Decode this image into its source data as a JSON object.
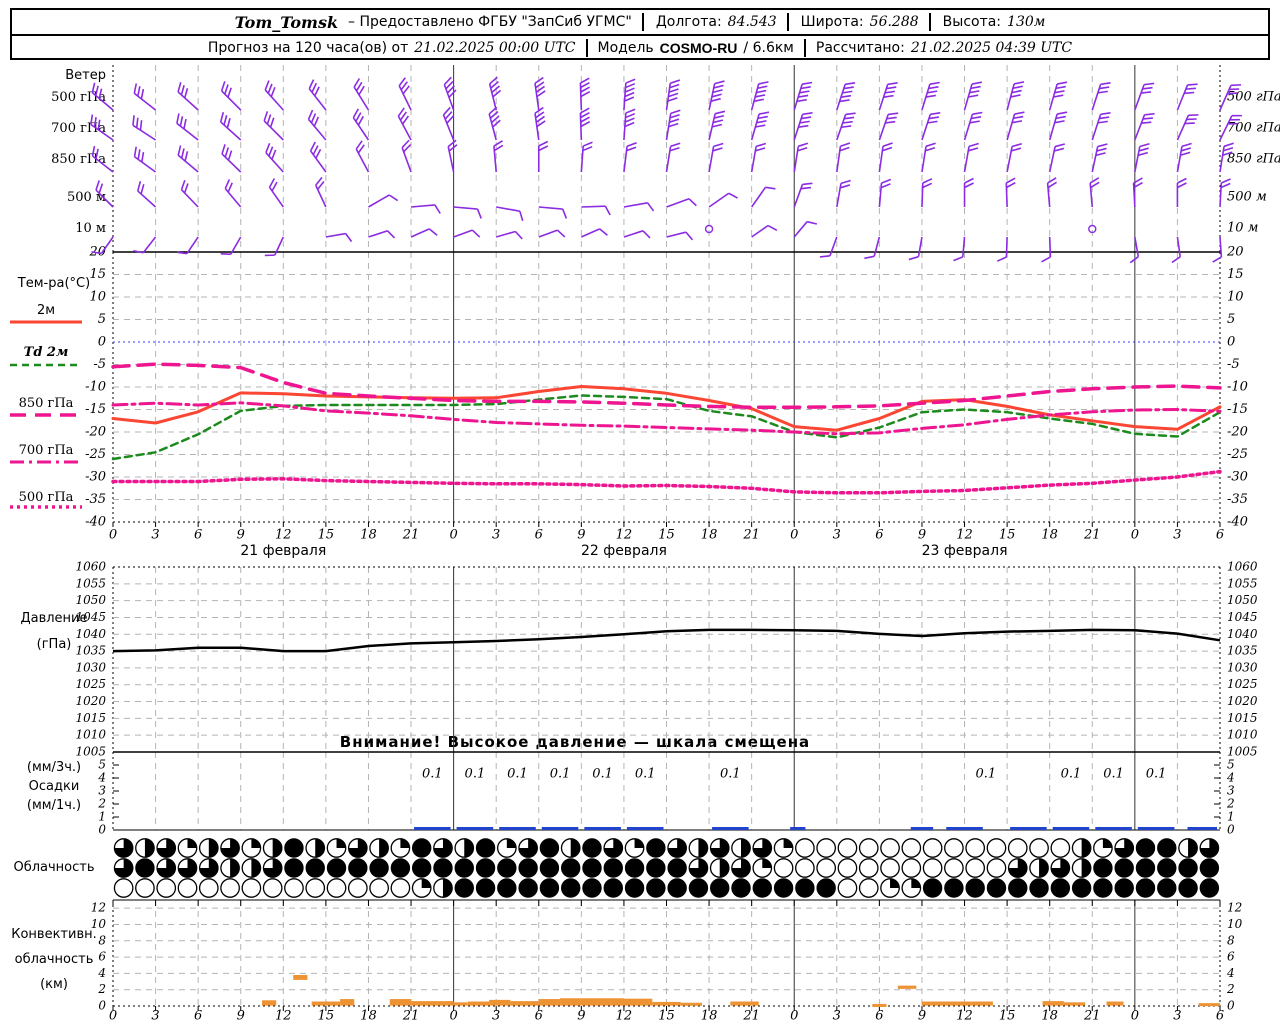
{
  "header": {
    "row1": {
      "station": "Tom_Tomsk",
      "dash": "–",
      "provider": "Предоставлено ФГБУ \"ЗапСиб УГМС\"",
      "lon_label": "Долгота:",
      "lon_value": "84.543",
      "lat_label": "Широта:",
      "lat_value": "56.288",
      "alt_label": "Высота:",
      "alt_value": "130м"
    },
    "row2": {
      "forecast_label": "Прогноз на 120 часа(ов) от",
      "init_value": "21.02.2025 00:00 UTC",
      "model_label": "Модель",
      "model_value": "COSMO-RU",
      "model_suffix": "/ 6.6км",
      "calc_label": "Рассчитано:",
      "calc_value": "21.02.2025 04:39 UTC"
    }
  },
  "axis": {
    "span_hours": 78,
    "step_hours": 3,
    "hour_labels": [
      "0",
      "3",
      "6",
      "9",
      "12",
      "15",
      "18",
      "21",
      "0",
      "3",
      "6",
      "9",
      "12",
      "15",
      "18",
      "21",
      "0",
      "3",
      "6",
      "9",
      "12",
      "15",
      "18",
      "21",
      "0",
      "3",
      "6"
    ],
    "date_labels": [
      {
        "text": "21 февраля",
        "hour": 12
      },
      {
        "text": "22 февраля",
        "hour": 36
      },
      {
        "text": "23 февраля",
        "hour": 60
      }
    ]
  },
  "chart_data": [
    {
      "id": "wind",
      "type": "wind-barbs",
      "title": "Ветер",
      "barb_color": "#8b2be2",
      "rows": [
        {
          "level": "500 гПа",
          "angles": [
            -50,
            -52,
            -48,
            -45,
            -42,
            -38,
            -32,
            -26,
            -20,
            -14,
            -8,
            -2,
            4,
            8,
            12,
            15,
            17,
            18,
            18,
            17,
            16,
            15,
            16,
            18,
            20,
            22,
            24
          ],
          "feathers": [
            3,
            3,
            3,
            3,
            3,
            3,
            3,
            3,
            4,
            4,
            4,
            4,
            5,
            5,
            5,
            5,
            5,
            5,
            4,
            4,
            4,
            4,
            4,
            3,
            3,
            3,
            3
          ]
        },
        {
          "level": "700 гПа",
          "angles": [
            -55,
            -57,
            -52,
            -48,
            -45,
            -40,
            -34,
            -28,
            -22,
            -15,
            -8,
            -2,
            4,
            9,
            13,
            16,
            18,
            19,
            19,
            18,
            17,
            16,
            16,
            18,
            21,
            24,
            26
          ],
          "feathers": [
            3,
            3,
            3,
            3,
            3,
            3,
            3,
            3,
            3,
            4,
            4,
            4,
            4,
            4,
            4,
            4,
            4,
            4,
            3,
            3,
            3,
            3,
            3,
            3,
            3,
            3,
            3
          ]
        },
        {
          "level": "850 гПа",
          "angles": [
            -52,
            -54,
            -50,
            -46,
            -42,
            -36,
            -28,
            -20,
            -12,
            -5,
            0,
            4,
            7,
            9,
            10,
            10,
            9,
            8,
            8,
            9,
            10,
            11,
            12,
            12,
            11,
            10,
            9
          ],
          "feathers": [
            2,
            3,
            3,
            3,
            3,
            3,
            2,
            2,
            2,
            2,
            2,
            2,
            2,
            2,
            2,
            2,
            2,
            2,
            2,
            2,
            2,
            2,
            2,
            3,
            3,
            3,
            3
          ]
        },
        {
          "level": "500 м",
          "angles": [
            -45,
            -48,
            -44,
            -40,
            -35,
            -25,
            60,
            85,
            95,
            100,
            95,
            88,
            80,
            70,
            55,
            35,
            20,
            10,
            5,
            2,
            0,
            -2,
            -5,
            -5,
            -3,
            0,
            3
          ],
          "feathers": [
            2,
            2,
            2,
            2,
            2,
            2,
            1,
            1,
            1,
            1,
            1,
            1,
            1,
            1,
            1,
            1,
            2,
            2,
            2,
            2,
            2,
            2,
            2,
            2,
            2,
            2,
            2
          ]
        },
        {
          "level": "10 м",
          "angles": [
            215,
            218,
            214,
            210,
            205,
            80,
            72,
            66,
            70,
            74,
            70,
            66,
            72,
            76,
            65,
            55,
            40,
            200,
            195,
            190,
            185,
            182,
            178,
            174,
            170,
            172,
            176
          ],
          "feathers": [
            1,
            1,
            1,
            1,
            1,
            1,
            1,
            1,
            1,
            1,
            1,
            1,
            1,
            1,
            1,
            1,
            1,
            1,
            1,
            1,
            1,
            1,
            1,
            1,
            1,
            1,
            1
          ]
        }
      ],
      "calm_points": [
        {
          "row": 4,
          "index": 14
        },
        {
          "row": 4,
          "index": 23
        }
      ]
    },
    {
      "id": "temperature",
      "type": "line",
      "ylabel": "Тем-ра(°C)",
      "ylim": [
        -40,
        20
      ],
      "yticks": [
        20,
        15,
        10,
        5,
        0,
        -5,
        -10,
        -15,
        -20,
        -25,
        -30,
        -35,
        -40
      ],
      "zero_line_color": "#3b3bff",
      "series": [
        {
          "name": "2м",
          "color": "#fa4632",
          "dash": "solid",
          "width": 3,
          "values": [
            -17,
            -18,
            -15.5,
            -11.3,
            -11.5,
            -12,
            -12.2,
            -12.4,
            -12.5,
            -12.4,
            -11,
            -9.9,
            -10.4,
            -11.4,
            -13,
            -14.8,
            -18.8,
            -19.6,
            -17,
            -13.2,
            -12.8,
            -14.3,
            -16.2,
            -17.5,
            -18.8,
            -19.4,
            -14.4
          ]
        },
        {
          "name": "Td 2м",
          "color": "#1d8a1d",
          "dash": "dashed",
          "width": 2.5,
          "values": [
            -26,
            -24.5,
            -20.5,
            -15.3,
            -14.2,
            -14,
            -14,
            -14,
            -14,
            -13.8,
            -12.8,
            -11.9,
            -12.2,
            -12.7,
            -15.3,
            -16.5,
            -20,
            -21.2,
            -19,
            -15.6,
            -15,
            -15.6,
            -17,
            -18.2,
            -20.4,
            -21,
            -15.6
          ]
        },
        {
          "name": "850 гПа",
          "color": "#ed1690",
          "dash": "longdash",
          "width": 3.5,
          "values": [
            -5.5,
            -4.9,
            -5.2,
            -5.7,
            -9,
            -11.4,
            -12,
            -12.5,
            -13,
            -13.2,
            -13.2,
            -13.3,
            -13.6,
            -14,
            -14.3,
            -14.5,
            -14.5,
            -14.4,
            -14.2,
            -13.6,
            -13,
            -12,
            -11,
            -10.4,
            -10,
            -9.8,
            -10.2
          ]
        },
        {
          "name": "700 гПа",
          "color": "#ed1690",
          "dash": "dashdot",
          "width": 3,
          "values": [
            -14,
            -13.6,
            -14,
            -13.5,
            -14.2,
            -15.3,
            -15.8,
            -16.4,
            -17.2,
            -17.9,
            -18.2,
            -18.5,
            -18.7,
            -19,
            -19.3,
            -19.6,
            -20,
            -20.4,
            -20.2,
            -19.2,
            -18.4,
            -17.2,
            -16.2,
            -15.5,
            -15.1,
            -15,
            -15.4
          ]
        },
        {
          "name": "500 гПа",
          "color": "#ed1690",
          "dash": "dotted",
          "width": 3.5,
          "values": [
            -31,
            -31,
            -31,
            -30.5,
            -30.4,
            -30.8,
            -31,
            -31.2,
            -31.4,
            -31.5,
            -31.5,
            -31.7,
            -32,
            -31.9,
            -32.1,
            -32.5,
            -33.3,
            -33.5,
            -33.5,
            -33.2,
            -33,
            -32.4,
            -31.8,
            -31.4,
            -30.7,
            -30,
            -28.8
          ]
        }
      ]
    },
    {
      "id": "pressure",
      "type": "line",
      "ylabel_lines": [
        "Давление",
        "(гПа)"
      ],
      "ylim": [
        1005,
        1060
      ],
      "yticks": [
        1060,
        1055,
        1050,
        1045,
        1040,
        1035,
        1030,
        1025,
        1020,
        1015,
        1010,
        1005
      ],
      "warning": "Внимание! Высокое давление — шкала смещена",
      "series": [
        {
          "name": "Давление",
          "color": "#000000",
          "dash": "solid",
          "width": 2.5,
          "values": [
            1035,
            1035.2,
            1036,
            1036,
            1035,
            1035,
            1036.5,
            1037.3,
            1037.6,
            1038,
            1038.5,
            1039.2,
            1040,
            1040.9,
            1041.3,
            1041.3,
            1041.2,
            1041,
            1040.1,
            1039.5,
            1040.3,
            1040.8,
            1041,
            1041.3,
            1041.2,
            1040.2,
            1038.2
          ]
        }
      ]
    },
    {
      "id": "precip",
      "type": "bar",
      "ylabel_lines": [
        "(мм/3ч.)",
        "Осадки",
        "(мм/1ч.)"
      ],
      "ylim": [
        0,
        5
      ],
      "yticks": [
        5,
        4,
        3,
        2,
        1,
        0
      ],
      "bar_color": "#2244cc",
      "value_labels": [
        {
          "hour": 22.5,
          "text": "0.1"
        },
        {
          "hour": 25.5,
          "text": "0.1"
        },
        {
          "hour": 28.5,
          "text": "0.1"
        },
        {
          "hour": 31.5,
          "text": "0.1"
        },
        {
          "hour": 34.5,
          "text": "0.1"
        },
        {
          "hour": 37.5,
          "text": "0.1"
        },
        {
          "hour": 43.5,
          "text": "0.1"
        },
        {
          "hour": 61.5,
          "text": "0.1"
        },
        {
          "hour": 67.5,
          "text": "0.1"
        },
        {
          "hour": 70.5,
          "text": "0.1"
        },
        {
          "hour": 73.5,
          "text": "0.1"
        }
      ],
      "bars": [
        {
          "h1": 21,
          "h2": 24,
          "amount": 0.1
        },
        {
          "h1": 24,
          "h2": 27,
          "amount": 0.1
        },
        {
          "h1": 27,
          "h2": 30,
          "amount": 0.1
        },
        {
          "h1": 30,
          "h2": 33,
          "amount": 0.1
        },
        {
          "h1": 33,
          "h2": 36,
          "amount": 0.1
        },
        {
          "h1": 36,
          "h2": 39,
          "amount": 0.1
        },
        {
          "h1": 42,
          "h2": 45,
          "amount": 0.1
        },
        {
          "h1": 47.5,
          "h2": 49,
          "amount": 0.1
        },
        {
          "h1": 56,
          "h2": 58,
          "amount": 0.1
        },
        {
          "h1": 58.5,
          "h2": 61.5,
          "amount": 0.1
        },
        {
          "h1": 63,
          "h2": 66,
          "amount": 0.1
        },
        {
          "h1": 66,
          "h2": 69,
          "amount": 0.1
        },
        {
          "h1": 69,
          "h2": 72,
          "amount": 0.1
        },
        {
          "h1": 72,
          "h2": 75,
          "amount": 0.1
        },
        {
          "h1": 75.5,
          "h2": 78,
          "amount": 0.1
        }
      ]
    },
    {
      "id": "cloud",
      "type": "cloud-cover",
      "ylabel": "Облачность",
      "rows": [
        [
          0.75,
          0.5,
          0.75,
          0.25,
          0.5,
          0.75,
          0.25,
          0.5,
          1,
          0.5,
          0.25,
          0.75,
          0.5,
          0.25,
          1,
          0.75,
          0.5,
          1,
          0.25,
          0.75,
          1,
          0.5,
          1,
          0.75,
          0.25,
          1,
          0.75,
          0.5,
          0.75,
          0.5,
          0.75,
          0.25,
          0,
          0,
          0,
          0,
          0,
          0,
          0,
          0,
          0,
          0,
          0,
          0,
          0,
          0.5,
          0.25,
          0.75,
          1,
          1,
          0.5,
          0.75
        ],
        [
          0.75,
          1,
          0.75,
          0.75,
          0.75,
          0.5,
          0.5,
          0.75,
          1,
          1,
          1,
          1,
          1,
          1,
          1,
          1,
          1,
          1,
          1,
          1,
          1,
          1,
          1,
          1,
          1,
          1,
          1,
          0.75,
          0.5,
          0.75,
          0.25,
          0,
          0,
          0,
          0,
          0,
          0,
          0,
          0,
          0,
          0,
          0,
          0.75,
          0.5,
          0.75,
          0.5,
          1,
          1,
          1,
          1,
          1,
          1
        ],
        [
          0,
          0,
          0,
          0,
          0,
          0,
          0,
          0,
          0,
          0,
          0,
          0,
          0,
          0,
          0.25,
          0.5,
          1,
          1,
          1,
          1,
          1,
          1,
          1,
          1,
          1,
          1,
          1,
          1,
          1,
          1,
          1,
          1,
          1,
          1,
          0,
          0,
          0.25,
          0.25,
          1,
          1,
          1,
          1,
          1,
          1,
          1,
          1,
          1,
          1,
          1,
          1,
          1,
          1
        ]
      ]
    },
    {
      "id": "convective",
      "type": "bar",
      "ylabel_lines": [
        "Конвективн.",
        "облачность",
        "(км)"
      ],
      "ylim": [
        0,
        13
      ],
      "yticks": [
        12,
        10,
        8,
        6,
        4,
        2,
        0
      ],
      "color": "#ee9333",
      "segments": [
        {
          "h1": 10.5,
          "h2": 11.5,
          "b": 0.05,
          "t": 0.7
        },
        {
          "h1": 12.7,
          "h2": 13.7,
          "b": 3.2,
          "t": 3.8
        },
        {
          "h1": 14,
          "h2": 16,
          "b": 0.05,
          "t": 0.55
        },
        {
          "h1": 16,
          "h2": 17,
          "b": 0.05,
          "t": 0.85
        },
        {
          "h1": 19.5,
          "h2": 21,
          "b": 0.05,
          "t": 0.85
        },
        {
          "h1": 21,
          "h2": 24,
          "b": 0.05,
          "t": 0.6
        },
        {
          "h1": 24,
          "h2": 25,
          "b": 0.05,
          "t": 0.45
        },
        {
          "h1": 25,
          "h2": 26.5,
          "b": 0.05,
          "t": 0.55
        },
        {
          "h1": 26.5,
          "h2": 28,
          "b": 0.05,
          "t": 0.75
        },
        {
          "h1": 28,
          "h2": 30,
          "b": 0.05,
          "t": 0.6
        },
        {
          "h1": 30,
          "h2": 31.5,
          "b": 0.05,
          "t": 0.85
        },
        {
          "h1": 31.5,
          "h2": 33,
          "b": 0.05,
          "t": 0.95
        },
        {
          "h1": 33,
          "h2": 36,
          "b": 0.05,
          "t": 0.95
        },
        {
          "h1": 36,
          "h2": 38,
          "b": 0.05,
          "t": 0.9
        },
        {
          "h1": 38,
          "h2": 40,
          "b": 0.05,
          "t": 0.5
        },
        {
          "h1": 40,
          "h2": 41.5,
          "b": 0.05,
          "t": 0.4
        },
        {
          "h1": 43.5,
          "h2": 45.5,
          "b": 0.05,
          "t": 0.55
        },
        {
          "h1": 53.5,
          "h2": 54.5,
          "b": 0.05,
          "t": 0.25
        },
        {
          "h1": 55.3,
          "h2": 56.6,
          "b": 2.1,
          "t": 2.5
        },
        {
          "h1": 57,
          "h2": 60.5,
          "b": 0.05,
          "t": 0.55
        },
        {
          "h1": 60.5,
          "h2": 62,
          "b": 0.05,
          "t": 0.55
        },
        {
          "h1": 65.5,
          "h2": 67,
          "b": 0.05,
          "t": 0.6
        },
        {
          "h1": 67,
          "h2": 68.5,
          "b": 0.05,
          "t": 0.45
        },
        {
          "h1": 70,
          "h2": 71.2,
          "b": 0.05,
          "t": 0.55
        },
        {
          "h1": 76.5,
          "h2": 78,
          "b": 0.05,
          "t": 0.35
        }
      ]
    }
  ]
}
